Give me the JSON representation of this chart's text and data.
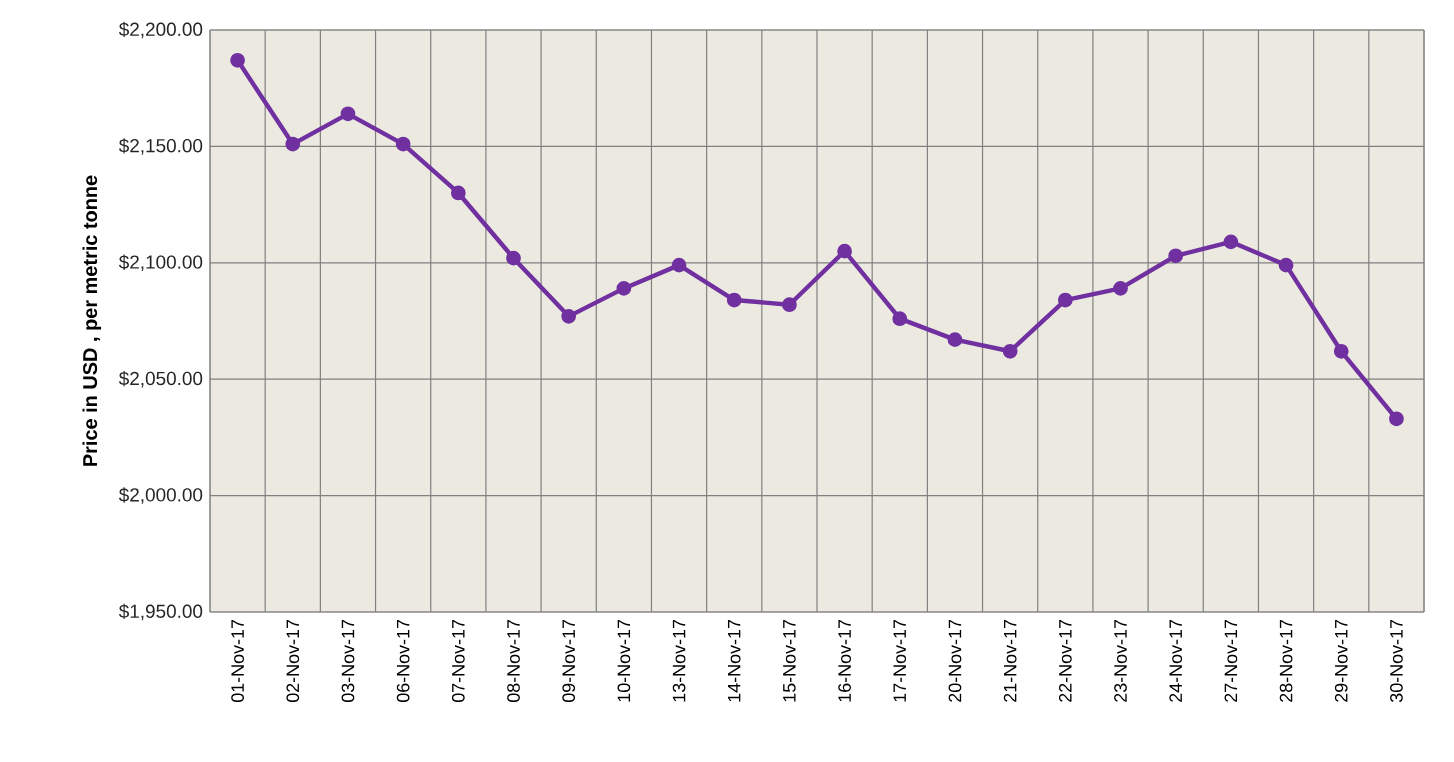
{
  "chart_data": {
    "type": "line",
    "ylabel": "Price in USD , per metric tonne",
    "categories": [
      "01-Nov-17",
      "02-Nov-17",
      "03-Nov-17",
      "06-Nov-17",
      "07-Nov-17",
      "08-Nov-17",
      "09-Nov-17",
      "10-Nov-17",
      "13-Nov-17",
      "14-Nov-17",
      "15-Nov-17",
      "16-Nov-17",
      "17-Nov-17",
      "20-Nov-17",
      "21-Nov-17",
      "22-Nov-17",
      "23-Nov-17",
      "24-Nov-17",
      "27-Nov-17",
      "28-Nov-17",
      "29-Nov-17",
      "30-Nov-17"
    ],
    "series": [
      {
        "color": "#7030a0",
        "values": [
          2187,
          2151,
          2164,
          2151,
          2130,
          2102,
          2077,
          2089,
          2099,
          2084,
          2082,
          2105,
          2076,
          2067,
          2062,
          2084,
          2089,
          2103,
          2109,
          2099,
          2062,
          2033
        ]
      }
    ],
    "ylim": [
      1950,
      2200
    ],
    "yticks": [
      {
        "value": 1950,
        "label": "$1,950.00"
      },
      {
        "value": 2000,
        "label": "$2,000.00"
      },
      {
        "value": 2050,
        "label": "$2,050.00"
      },
      {
        "value": 2100,
        "label": "$2,100.00"
      },
      {
        "value": 2150,
        "label": "$2,150.00"
      },
      {
        "value": 2200,
        "label": "$2,200.00"
      }
    ],
    "grid": true,
    "marker": "circle",
    "line_style": "solid"
  }
}
